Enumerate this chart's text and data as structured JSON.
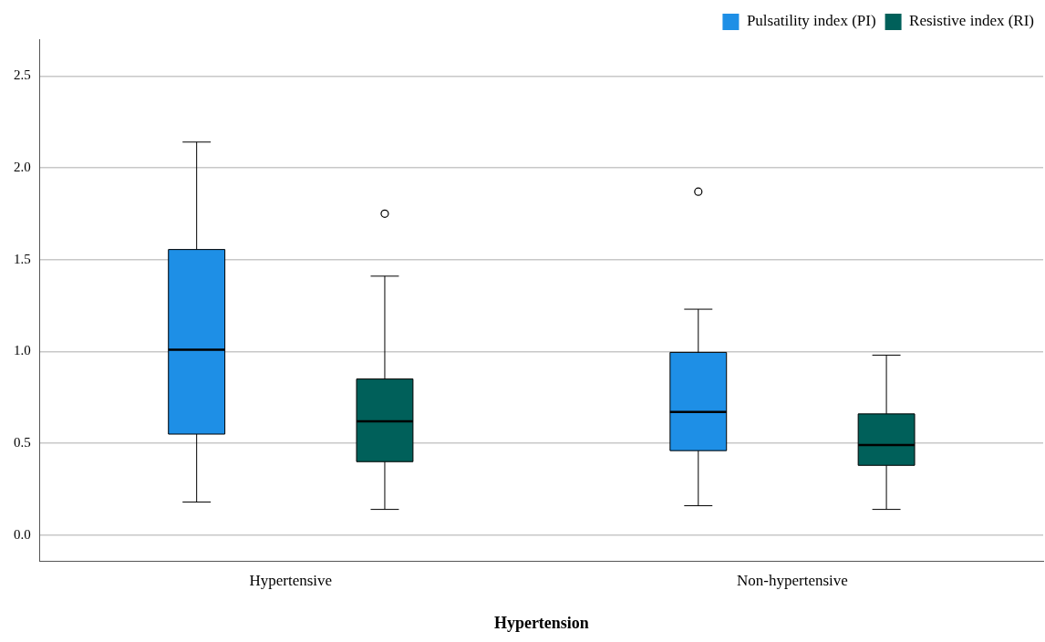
{
  "chart_data": {
    "type": "box",
    "xlabel": "Hypertension",
    "categories": [
      "Hypertensive",
      "Non-hypertensive"
    ],
    "series": [
      {
        "name": "Pulsatility index (PI)",
        "color": "#1e8fe6",
        "boxes": [
          {
            "low": 0.18,
            "q1": 0.55,
            "median": 1.01,
            "q3": 1.555,
            "high": 2.14
          },
          {
            "low": 0.16,
            "q1": 0.46,
            "median": 0.67,
            "q3": 0.995,
            "high": 1.23,
            "outliers": [
              1.87
            ]
          }
        ]
      },
      {
        "name": "Resistive index (RI)",
        "color": "#00605a",
        "boxes": [
          {
            "low": 0.14,
            "q1": 0.4,
            "median": 0.62,
            "q3": 0.85,
            "high": 1.41,
            "outliers": [
              1.75
            ]
          },
          {
            "low": 0.14,
            "q1": 0.38,
            "median": 0.49,
            "q3": 0.66,
            "high": 0.98
          }
        ]
      }
    ],
    "ylim": [
      -0.14,
      2.7
    ],
    "yticks": [
      {
        "value": 0,
        "label": "0.0"
      },
      {
        "value": 0.5,
        "label": "0.5"
      },
      {
        "value": 1,
        "label": "1.0"
      },
      {
        "value": 1.5,
        "label": "1.5"
      },
      {
        "value": 2,
        "label": "2.0"
      },
      {
        "value": 2.5,
        "label": "2.5"
      }
    ],
    "grid": "y",
    "legend": "top right"
  }
}
